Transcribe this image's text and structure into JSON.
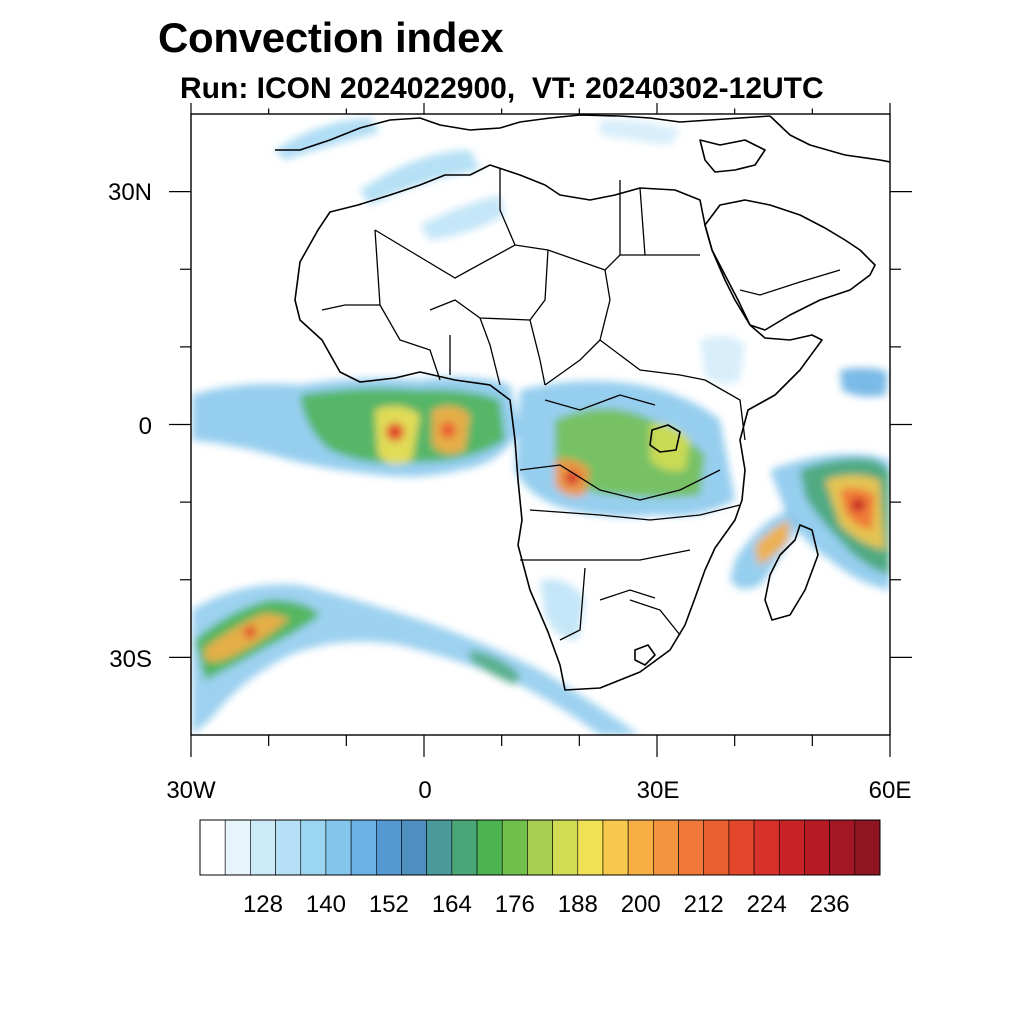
{
  "header": {
    "title": "Convection index",
    "subtitle": "Run: ICON 2024022900,  VT: 20240302-12UTC"
  },
  "map": {
    "lon_range": [
      -30,
      60
    ],
    "lat_range": [
      -40,
      40
    ],
    "lat_labels": [
      "30N",
      "0",
      "30S"
    ],
    "lon_labels": [
      "30W",
      "0",
      "30E",
      "60E"
    ]
  },
  "colorbar": {
    "labels": [
      "128",
      "140",
      "152",
      "164",
      "176",
      "188",
      "200",
      "212",
      "224",
      "236"
    ],
    "colors": [
      "#ffffff",
      "#e6f5fc",
      "#cdeaf9",
      "#b5e0f6",
      "#9cd5f2",
      "#84c6ec",
      "#6bb3e4",
      "#5599d3",
      "#4e8fbf",
      "#4a9a9c",
      "#48a677",
      "#4bb350",
      "#72c04c",
      "#a6cf4f",
      "#d3dd54",
      "#f1e155",
      "#f6c84c",
      "#f6ae45",
      "#f4933f",
      "#f07838",
      "#e95f30",
      "#e2472c",
      "#d83129",
      "#c92327",
      "#b61b25",
      "#a21723",
      "#8f1520"
    ]
  }
}
